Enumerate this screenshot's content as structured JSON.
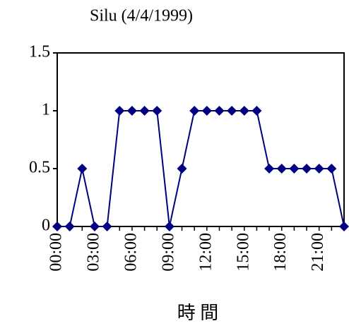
{
  "chart_data": {
    "type": "line",
    "title": "Silu (4/4/1999)",
    "x_label": "時 間",
    "categories": [
      "00:00",
      null,
      null,
      "03:00",
      null,
      null,
      "06:00",
      null,
      null,
      "09:00",
      null,
      null,
      "12:00",
      null,
      null,
      "15:00",
      null,
      null,
      "18:00",
      null,
      null,
      "21:00",
      null,
      null
    ],
    "series": [
      {
        "name": "Silu",
        "color": "#000080",
        "values": [
          0,
          0,
          0.5,
          0,
          0,
          1,
          1,
          1,
          1,
          0,
          0.5,
          1,
          1,
          1,
          1,
          1,
          1,
          0.5,
          0.5,
          0.5,
          0.5,
          0.5,
          0.5,
          0
        ]
      }
    ],
    "ylim": [
      0,
      1.5
    ],
    "yticks": [
      0,
      0.5,
      1,
      1.5
    ],
    "grid": false,
    "legend": false
  }
}
